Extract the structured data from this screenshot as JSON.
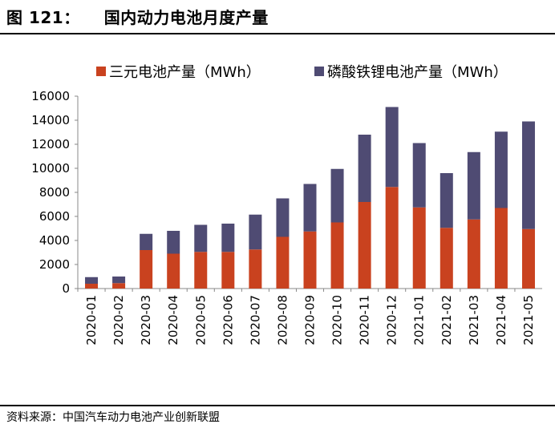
{
  "header": {
    "figure_number": "图 121：",
    "title": "国内动力电池月度产量"
  },
  "source": "资料来源：中国汽车动力电池产业创新联盟",
  "chart_data": {
    "type": "bar",
    "stacked": true,
    "categories": [
      "2020-01",
      "2020-02",
      "2020-03",
      "2020-04",
      "2020-05",
      "2020-06",
      "2020-07",
      "2020-08",
      "2020-09",
      "2020-10",
      "2020-11",
      "2020-12",
      "2021-01",
      "2021-02",
      "2021-03",
      "2021-04",
      "2021-05"
    ],
    "series": [
      {
        "name": "三元电池产量（MWh）",
        "color": "#c9421f",
        "values": [
          400,
          450,
          3200,
          2900,
          3050,
          3050,
          3250,
          4300,
          4750,
          5500,
          7200,
          8450,
          6750,
          5050,
          5750,
          6700,
          4950
        ]
      },
      {
        "name": "磷酸铁锂电池产量（MWh）",
        "color": "#4f4b73",
        "values": [
          550,
          550,
          1350,
          1900,
          2250,
          2350,
          2900,
          3200,
          3950,
          4450,
          5600,
          6650,
          5350,
          4550,
          5600,
          6350,
          8950
        ]
      }
    ],
    "ylim": [
      0,
      16000
    ],
    "yticks": [
      "0",
      "2000",
      "4000",
      "6000",
      "8000",
      "10000",
      "12000",
      "14000",
      "16000"
    ],
    "grid": false,
    "legend": "top"
  }
}
